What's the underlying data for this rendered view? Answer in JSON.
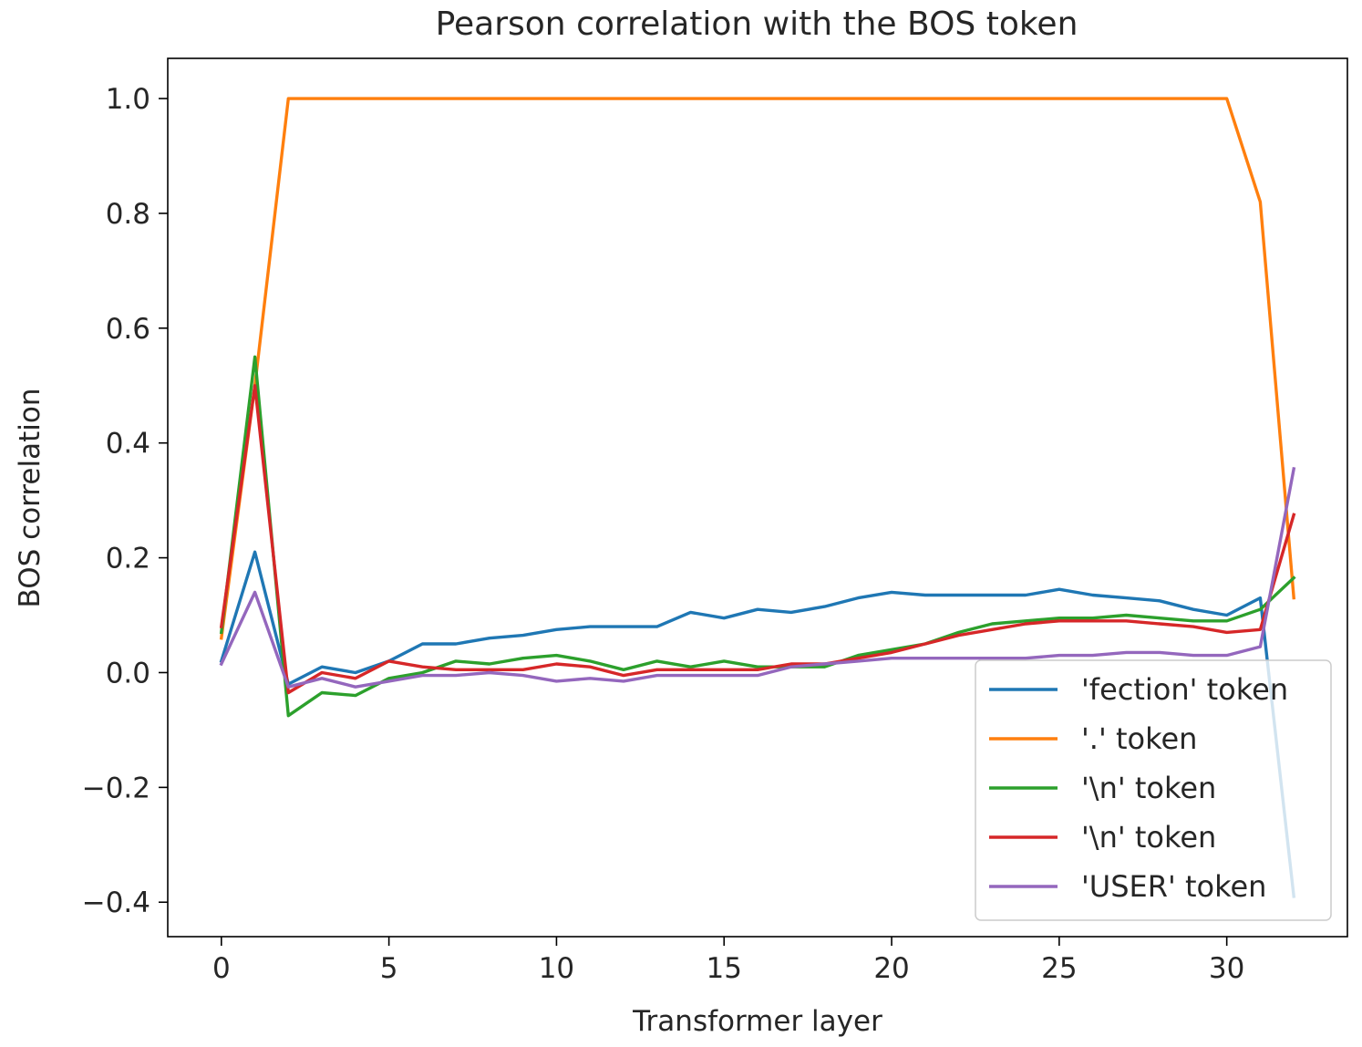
{
  "chart_data": {
    "type": "line",
    "title": "Pearson correlation with the BOS token",
    "xlabel": "Transformer layer",
    "ylabel": "BOS correlation",
    "xlim": [
      -1.6,
      33.6
    ],
    "ylim": [
      -0.46,
      1.07
    ],
    "xticks": [
      0,
      5,
      10,
      15,
      20,
      25,
      30
    ],
    "yticks": [
      -0.4,
      -0.2,
      0.0,
      0.2,
      0.4,
      0.6,
      0.8,
      1.0
    ],
    "ytick_labels": [
      "−0.4",
      "−0.2",
      "0.0",
      "0.2",
      "0.4",
      "0.6",
      "0.8",
      "1.0"
    ],
    "grid": false,
    "legend_position": "lower-right",
    "x": [
      0,
      1,
      2,
      3,
      4,
      5,
      6,
      7,
      8,
      9,
      10,
      11,
      12,
      13,
      14,
      15,
      16,
      17,
      18,
      19,
      20,
      21,
      22,
      23,
      24,
      25,
      26,
      27,
      28,
      29,
      30,
      31,
      32
    ],
    "series": [
      {
        "name": "'fection' token",
        "color": "#1f77b4",
        "values": [
          0.02,
          0.21,
          -0.02,
          0.01,
          0.0,
          0.02,
          0.05,
          0.05,
          0.06,
          0.065,
          0.075,
          0.08,
          0.08,
          0.08,
          0.105,
          0.095,
          0.11,
          0.105,
          0.115,
          0.13,
          0.14,
          0.135,
          0.135,
          0.135,
          0.135,
          0.145,
          0.135,
          0.13,
          0.125,
          0.11,
          0.1,
          0.13,
          -0.39
        ]
      },
      {
        "name": "'.' token",
        "color": "#ff7f0e",
        "values": [
          0.06,
          0.5,
          1.0,
          1.0,
          1.0,
          1.0,
          1.0,
          1.0,
          1.0,
          1.0,
          1.0,
          1.0,
          1.0,
          1.0,
          1.0,
          1.0,
          1.0,
          1.0,
          1.0,
          1.0,
          1.0,
          1.0,
          1.0,
          1.0,
          1.0,
          1.0,
          1.0,
          1.0,
          1.0,
          1.0,
          1.0,
          0.82,
          0.13
        ]
      },
      {
        "name": "'\\n' token",
        "color": "#2ca02c",
        "values": [
          0.07,
          0.55,
          -0.075,
          -0.035,
          -0.04,
          -0.01,
          0.0,
          0.02,
          0.015,
          0.025,
          0.03,
          0.02,
          0.005,
          0.02,
          0.01,
          0.02,
          0.01,
          0.01,
          0.01,
          0.03,
          0.04,
          0.05,
          0.07,
          0.085,
          0.09,
          0.095,
          0.095,
          0.1,
          0.095,
          0.09,
          0.09,
          0.11,
          0.165
        ]
      },
      {
        "name": "'\\n' token",
        "color": "#d62728",
        "values": [
          0.08,
          0.5,
          -0.035,
          0.0,
          -0.01,
          0.02,
          0.01,
          0.005,
          0.005,
          0.005,
          0.015,
          0.01,
          -0.005,
          0.005,
          0.005,
          0.005,
          0.005,
          0.015,
          0.015,
          0.025,
          0.035,
          0.05,
          0.065,
          0.075,
          0.085,
          0.09,
          0.09,
          0.09,
          0.085,
          0.08,
          0.07,
          0.075,
          0.275
        ]
      },
      {
        "name": "'USER' token",
        "color": "#9467bd",
        "values": [
          0.015,
          0.14,
          -0.025,
          -0.01,
          -0.025,
          -0.015,
          -0.005,
          -0.005,
          0.0,
          -0.005,
          -0.015,
          -0.01,
          -0.015,
          -0.005,
          -0.005,
          -0.005,
          -0.005,
          0.01,
          0.015,
          0.02,
          0.025,
          0.025,
          0.025,
          0.025,
          0.025,
          0.03,
          0.03,
          0.035,
          0.035,
          0.03,
          0.03,
          0.045,
          0.355
        ]
      }
    ]
  }
}
